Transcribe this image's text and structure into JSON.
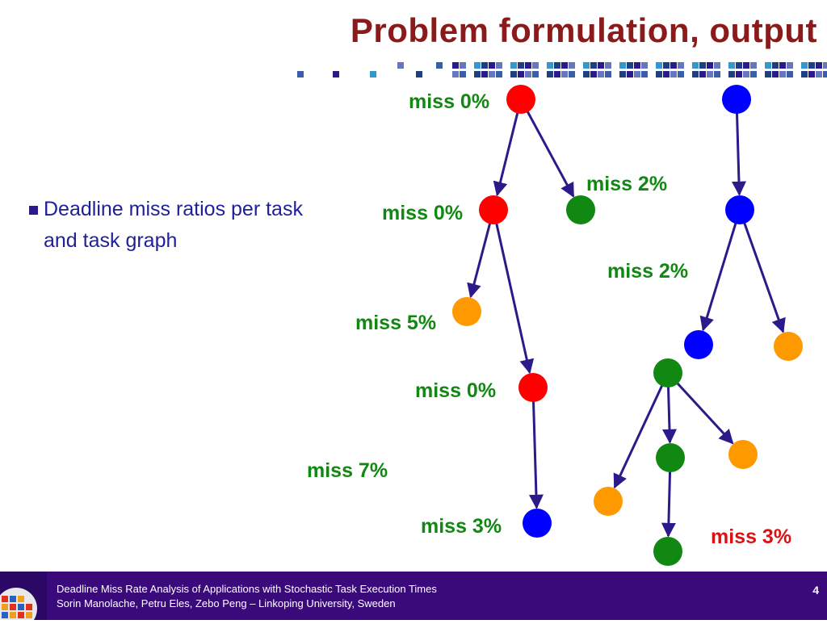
{
  "slide": {
    "title": "Problem formulation, output",
    "bullets": [
      "Deadline miss ratios per task and task graph"
    ]
  },
  "diagram": {
    "labels": {
      "g1_root": "miss 0%",
      "g1_n2": "miss 0%",
      "g1_n3": "miss 2%",
      "g1_n4": "miss 5%",
      "g1_n5": "miss 0%",
      "g1_n6": "miss 3%",
      "g1_graph": "miss 7%",
      "g2_n2": "miss 2%",
      "g3_graph": "miss 3%"
    },
    "colors": {
      "red": "#ff0000",
      "green": "#118811",
      "blue": "#0000ff",
      "orange": "#ff9900",
      "edge": "#2a1a8a",
      "label_green": "#118811",
      "label_red": "#dd1111"
    }
  },
  "footer": {
    "line1": "Deadline Miss Rate Analysis of Applications with Stochastic Task Execution Times",
    "line2": "Sorin Manolache, Petru Eles, Zebo Peng – Linkoping University, Sweden",
    "page": "4"
  }
}
